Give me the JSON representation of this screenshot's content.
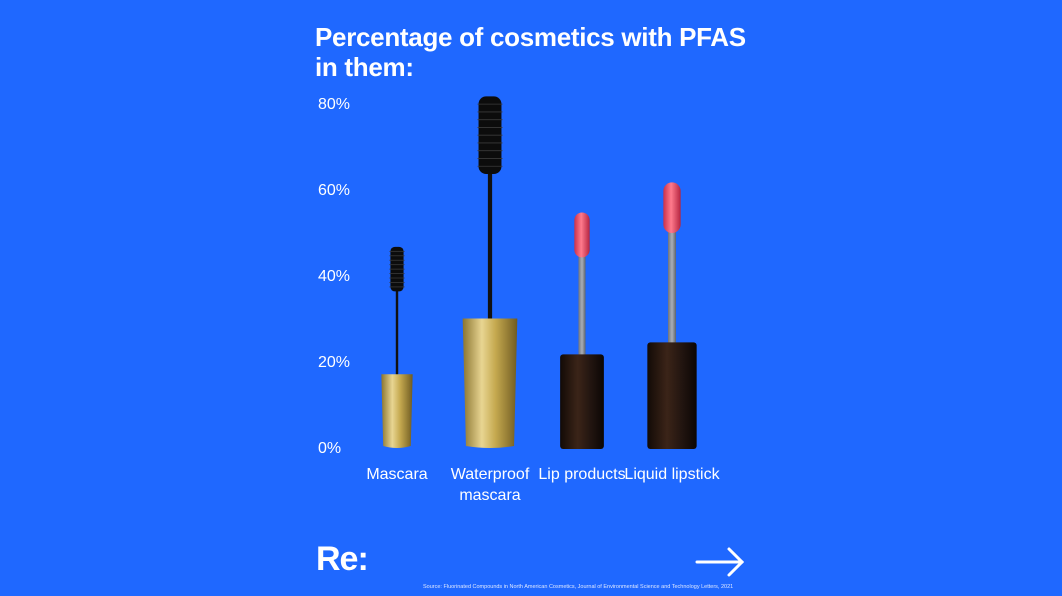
{
  "chart_data": {
    "type": "bar",
    "title": "Percentage of cosmetics with PFAS in them:",
    "categories": [
      "Mascara",
      "Waterproof mascara",
      "Lip products",
      "Liquid lipstick"
    ],
    "values": [
      47,
      82,
      55,
      62
    ],
    "ylim": [
      0,
      85
    ],
    "yticks": [
      {
        "value": 0,
        "label": "0%"
      },
      {
        "value": 20,
        "label": "20%"
      },
      {
        "value": 40,
        "label": "40%"
      },
      {
        "value": 60,
        "label": "60%"
      },
      {
        "value": 80,
        "label": "80%"
      }
    ],
    "logo": "Re:",
    "source": "Source: Fluorinated Compounds in North American Cosmetics, Journal of Environmental Science and Technology Letters, 2021"
  }
}
